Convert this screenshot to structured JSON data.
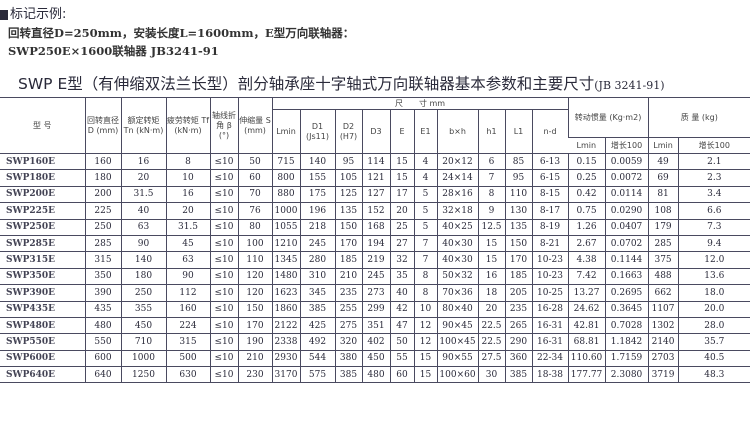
{
  "intro": {
    "heading": "标记示例:",
    "line1": "回转直径D=250mm，安装长度L=1600mm，E型万向联轴器：",
    "line2": "SWP250E×1600联轴器 JB3241-91"
  },
  "title": {
    "main": "SWP E型（有伸缩双法兰长型）剖分轴承座十字轴式万向联轴器基本参数和主要尺寸",
    "std": "(JB 3241-91)"
  },
  "header": {
    "model": "型 号",
    "D": "回转直径 D (mm)",
    "Tn": "额定转矩 Tn (kN·m)",
    "Tf": "疲劳转矩 Tf (kN·m)",
    "beta": "轴线折角 β (°)",
    "S": "伸缩量 S (mm)",
    "dims": "尺　　寸 mm",
    "Lmin": "Lmin",
    "D1": "D1 (Js11)",
    "D2": "D2 (H7)",
    "D3": "D3",
    "E": "E",
    "E1": "E1",
    "bxh": "b×h",
    "h1": "h1",
    "L1": "L1",
    "nd": "n-d",
    "inertia": "转动惯量 (Kg·m2)",
    "mass": "质 量 (kg)",
    "sub_lmin": "Lmin",
    "sub_inc": "增长100"
  },
  "rows": [
    [
      "SWP160E",
      "160",
      "16",
      "8",
      "≤10",
      "50",
      "715",
      "140",
      "95",
      "114",
      "15",
      "4",
      "20×12",
      "6",
      "85",
      "6-13",
      "0.15",
      "0.0059",
      "49",
      "2.1"
    ],
    [
      "SWP180E",
      "180",
      "20",
      "10",
      "≤10",
      "60",
      "800",
      "155",
      "105",
      "121",
      "15",
      "4",
      "24×14",
      "7",
      "95",
      "6-15",
      "0.25",
      "0.0072",
      "69",
      "2.3"
    ],
    [
      "SWP200E",
      "200",
      "31.5",
      "16",
      "≤10",
      "70",
      "880",
      "175",
      "125",
      "127",
      "17",
      "5",
      "28×16",
      "8",
      "110",
      "8-15",
      "0.42",
      "0.0114",
      "81",
      "3.4"
    ],
    [
      "SWP225E",
      "225",
      "40",
      "20",
      "≤10",
      "76",
      "1000",
      "196",
      "135",
      "152",
      "20",
      "5",
      "32×18",
      "9",
      "130",
      "8-17",
      "0.75",
      "0.0290",
      "108",
      "6.6"
    ],
    [
      "SWP250E",
      "250",
      "63",
      "31.5",
      "≤10",
      "80",
      "1055",
      "218",
      "150",
      "168",
      "25",
      "5",
      "40×25",
      "12.5",
      "135",
      "8-19",
      "1.26",
      "0.0407",
      "179",
      "7.3"
    ],
    [
      "SWP285E",
      "285",
      "90",
      "45",
      "≤10",
      "100",
      "1210",
      "245",
      "170",
      "194",
      "27",
      "7",
      "40×30",
      "15",
      "150",
      "8-21",
      "2.67",
      "0.0702",
      "285",
      "9.4"
    ],
    [
      "SWP315E",
      "315",
      "140",
      "63",
      "≤10",
      "110",
      "1345",
      "280",
      "185",
      "219",
      "32",
      "7",
      "40×30",
      "15",
      "170",
      "10-23",
      "4.38",
      "0.1144",
      "375",
      "12.0"
    ],
    [
      "SWP350E",
      "350",
      "180",
      "90",
      "≤10",
      "120",
      "1480",
      "310",
      "210",
      "245",
      "35",
      "8",
      "50×32",
      "16",
      "185",
      "10-23",
      "7.42",
      "0.1663",
      "488",
      "13.6"
    ],
    [
      "SWP390E",
      "390",
      "250",
      "112",
      "≤10",
      "120",
      "1623",
      "345",
      "235",
      "273",
      "40",
      "8",
      "70×36",
      "18",
      "205",
      "10-25",
      "13.27",
      "0.2695",
      "662",
      "18.0"
    ],
    [
      "SWP435E",
      "435",
      "355",
      "160",
      "≤10",
      "150",
      "1860",
      "385",
      "255",
      "299",
      "42",
      "10",
      "80×40",
      "20",
      "235",
      "16-28",
      "24.62",
      "0.3645",
      "1107",
      "20.0"
    ],
    [
      "SWP480E",
      "480",
      "450",
      "224",
      "≤10",
      "170",
      "2122",
      "425",
      "275",
      "351",
      "47",
      "12",
      "90×45",
      "22.5",
      "265",
      "16-31",
      "42.81",
      "0.7028",
      "1302",
      "28.0"
    ],
    [
      "SWP550E",
      "550",
      "710",
      "315",
      "≤10",
      "190",
      "2338",
      "492",
      "320",
      "402",
      "50",
      "12",
      "100×45",
      "22.5",
      "290",
      "16-31",
      "68.81",
      "1.1842",
      "2140",
      "35.7"
    ],
    [
      "SWP600E",
      "600",
      "1000",
      "500",
      "≤10",
      "210",
      "2930",
      "544",
      "380",
      "450",
      "55",
      "15",
      "90×55",
      "27.5",
      "360",
      "22-34",
      "110.60",
      "1.7159",
      "2703",
      "40.5"
    ],
    [
      "SWP640E",
      "640",
      "1250",
      "630",
      "≤10",
      "230",
      "3170",
      "575",
      "385",
      "480",
      "60",
      "15",
      "100×60",
      "30",
      "385",
      "18-38",
      "177.77",
      "2.3080",
      "3719",
      "48.3"
    ]
  ]
}
